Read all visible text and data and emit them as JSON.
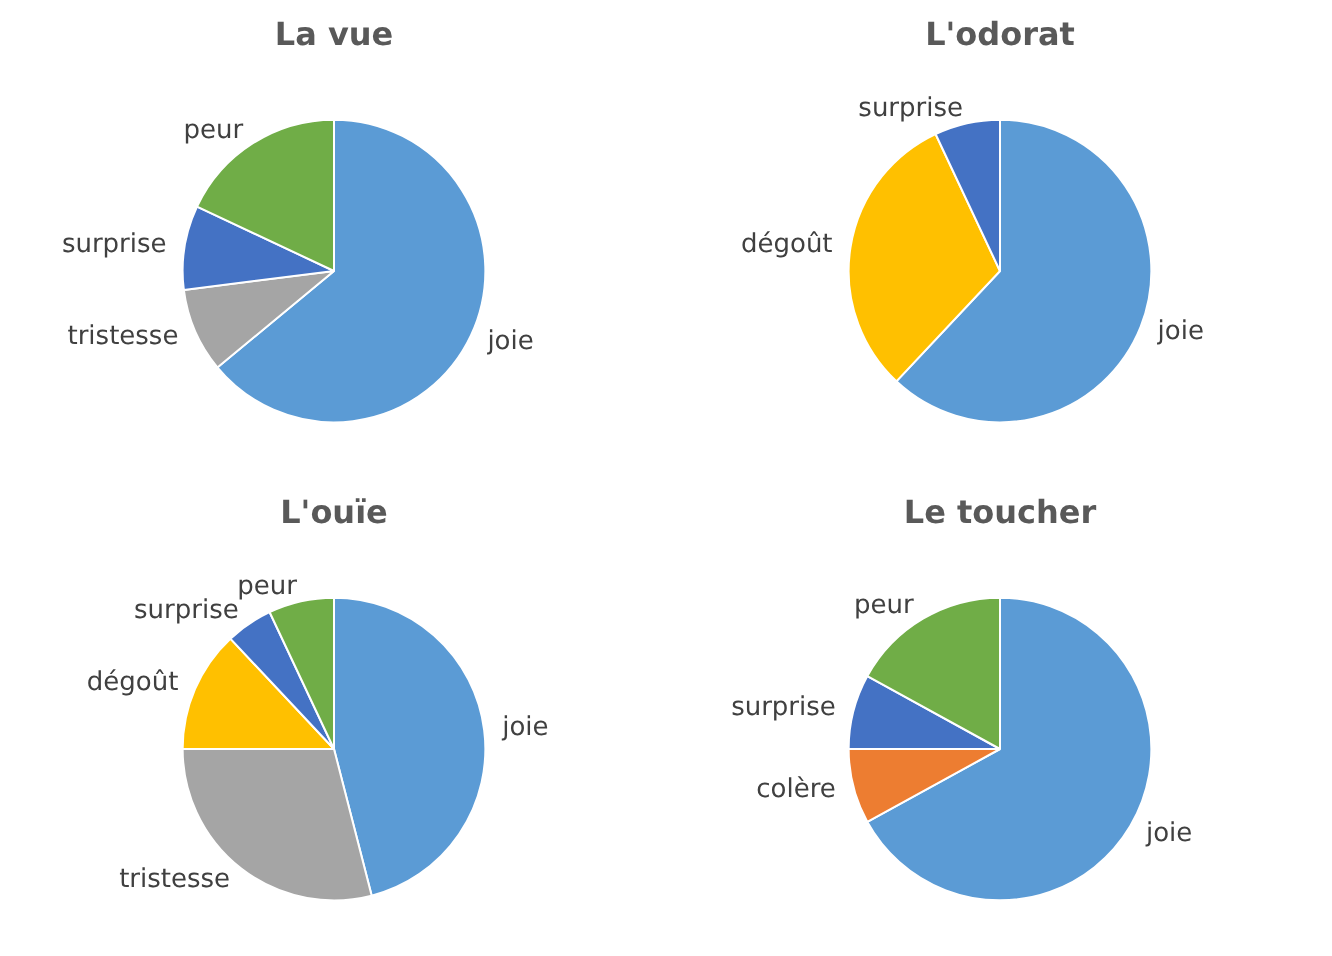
{
  "chart_data": [
    {
      "type": "pie",
      "title": "La vue",
      "categories": [
        "joie",
        "tristesse",
        "surprise",
        "peur"
      ],
      "values": [
        64,
        9,
        9,
        18
      ],
      "colors": [
        "#5b9bd5",
        "#a5a5a5",
        "#4472c4",
        "#70ad47"
      ]
    },
    {
      "type": "pie",
      "title": "L'odorat",
      "categories": [
        "joie",
        "dégoût",
        "surprise"
      ],
      "values": [
        62,
        31,
        7
      ],
      "colors": [
        "#5b9bd5",
        "#ffc000",
        "#4472c4"
      ]
    },
    {
      "type": "pie",
      "title": "L'ouïe",
      "categories": [
        "joie",
        "tristesse",
        "dégoût",
        "surprise",
        "peur"
      ],
      "values": [
        46,
        29,
        13,
        5,
        7
      ],
      "colors": [
        "#5b9bd5",
        "#a5a5a5",
        "#ffc000",
        "#4472c4",
        "#70ad47"
      ]
    },
    {
      "type": "pie",
      "title": "Le toucher",
      "categories": [
        "joie",
        "colère",
        "surprise",
        "peur"
      ],
      "values": [
        67,
        8,
        8,
        17
      ],
      "colors": [
        "#5b9bd5",
        "#ed7d31",
        "#4472c4",
        "#70ad47"
      ]
    }
  ]
}
